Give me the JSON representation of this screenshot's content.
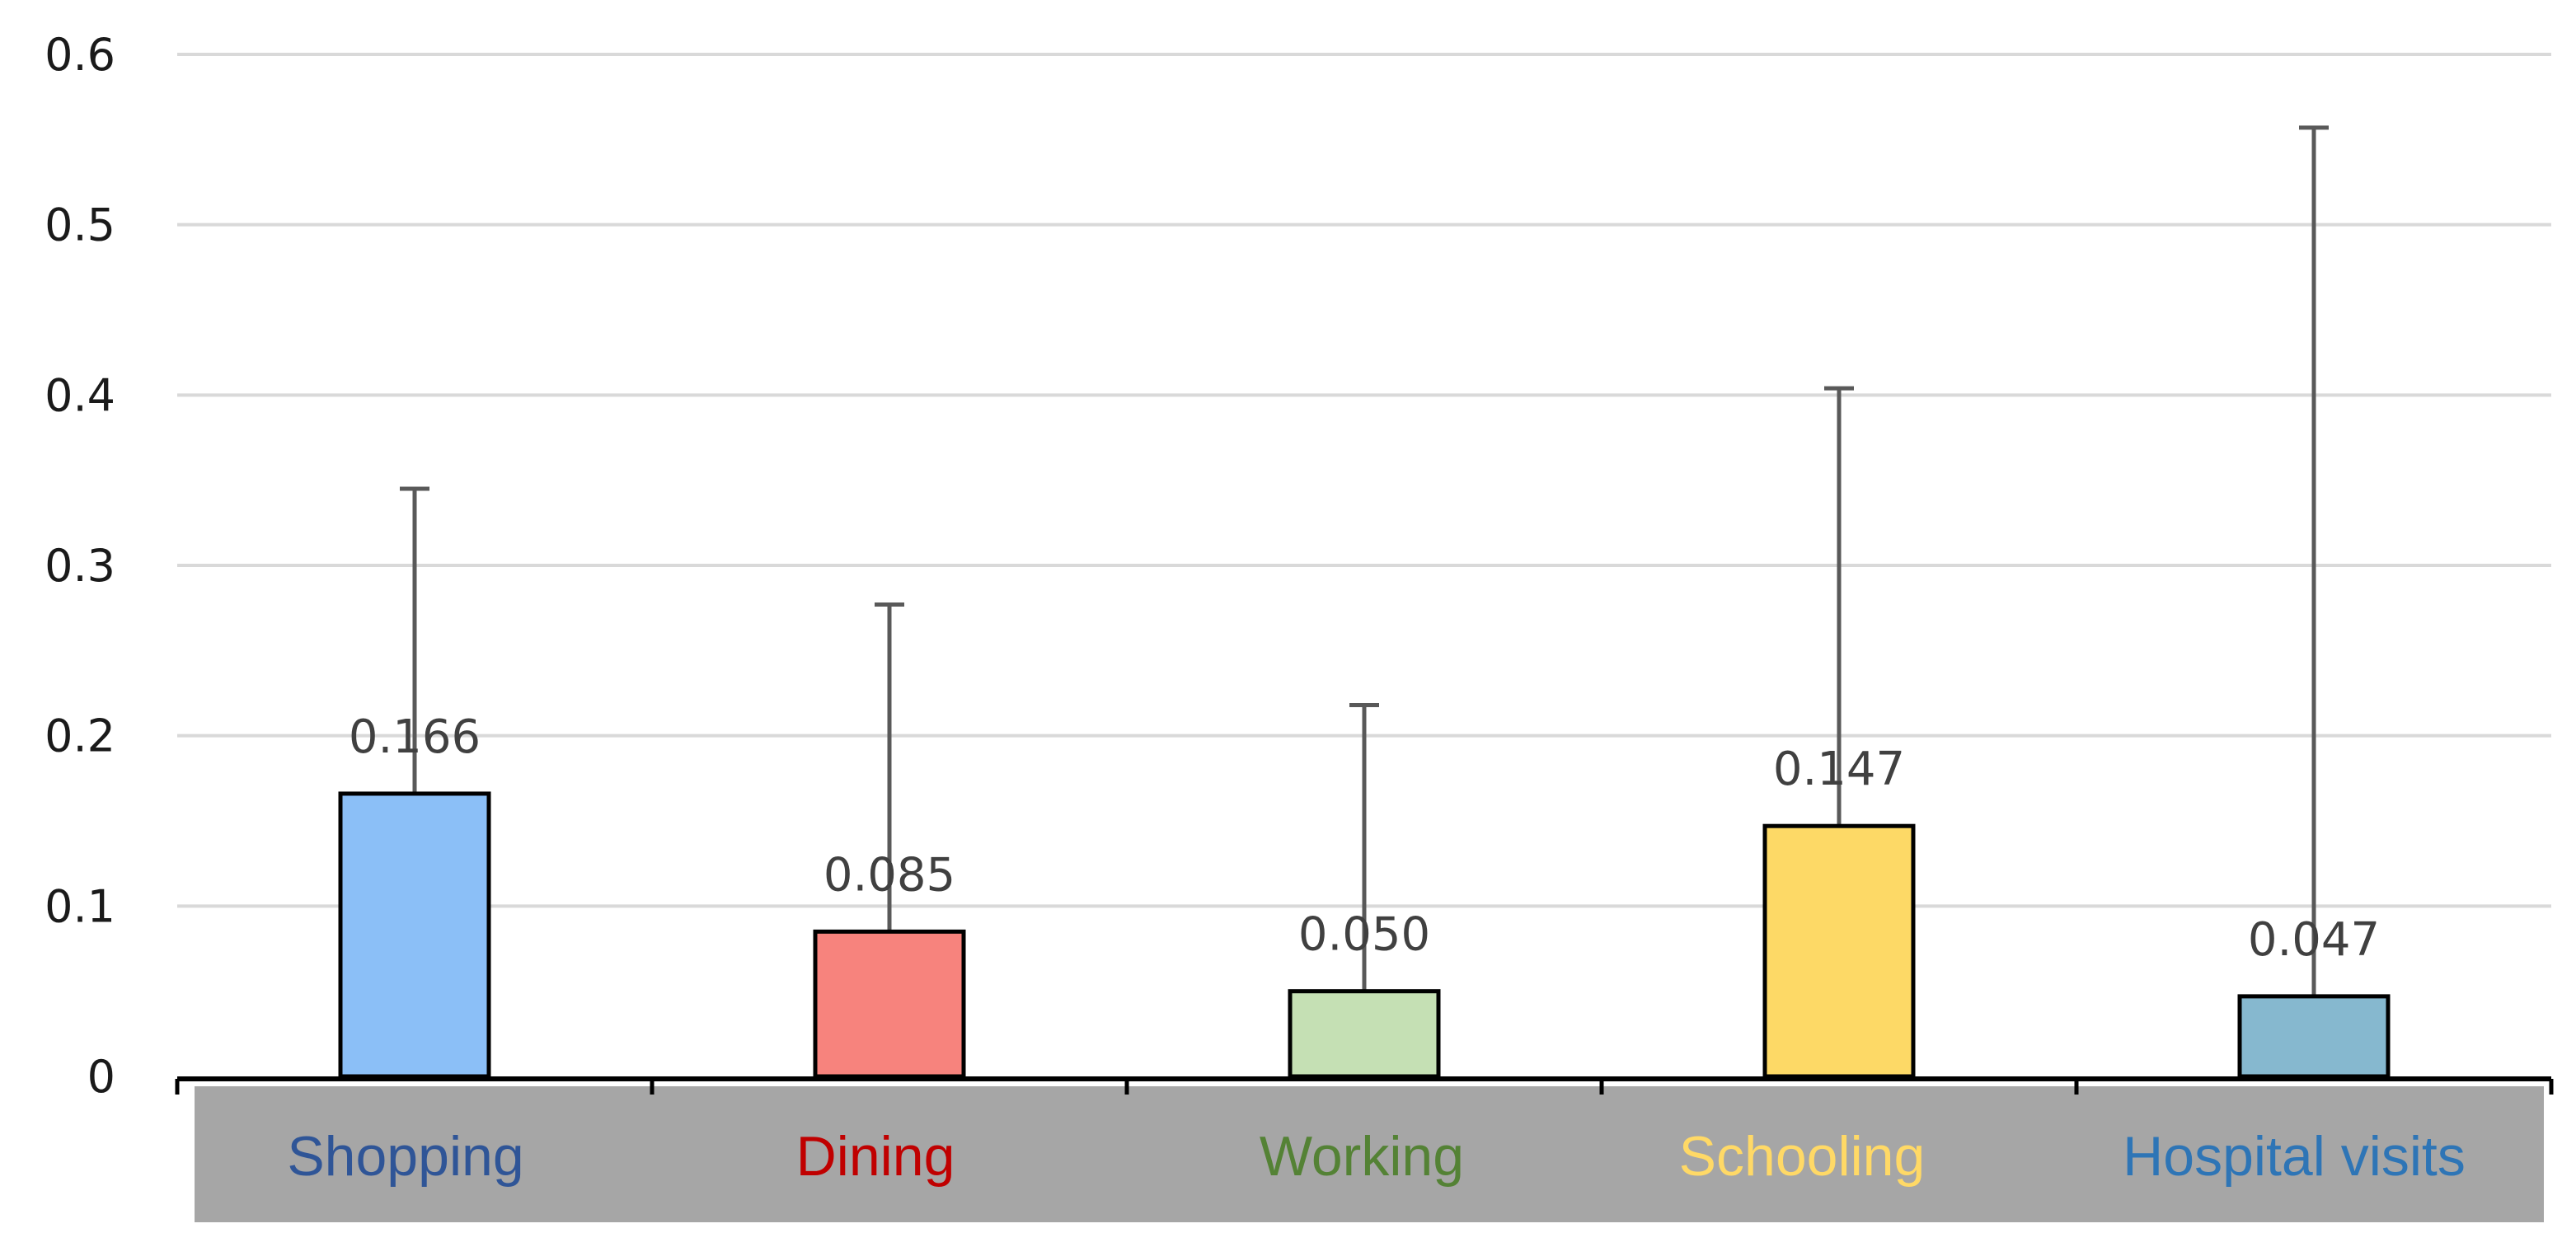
{
  "chart_data": {
    "type": "bar",
    "title": "",
    "xlabel": "",
    "ylabel": "",
    "ylim": [
      0,
      0.6
    ],
    "yticks": [
      0,
      0.1,
      0.2,
      0.3,
      0.4,
      0.5,
      0.6
    ],
    "ytick_labels": [
      "0",
      "0.1",
      "0.2",
      "0.3",
      "0.4",
      "0.5",
      "0.6"
    ],
    "grid": "horizontal",
    "legend": "none",
    "categories": [
      "Shopping",
      "Dining",
      "Working",
      "Schooling",
      "Hospital visits"
    ],
    "values": [
      0.166,
      0.085,
      0.05,
      0.147,
      0.047
    ],
    "data_labels": [
      "0.166",
      "0.085",
      "0.050",
      "0.147",
      "0.047"
    ],
    "error_upper": [
      0.345,
      0.277,
      0.218,
      0.404,
      0.557
    ],
    "bar_colors": [
      "#8bbff7",
      "#f7837d",
      "#c5e0b4",
      "#fdd966",
      "#86b8cf"
    ],
    "label_colors": [
      "#2f5597",
      "#c00000",
      "#548235",
      "#ffd966",
      "#2e75b6"
    ],
    "category_band_color": "#a6a6a6"
  }
}
